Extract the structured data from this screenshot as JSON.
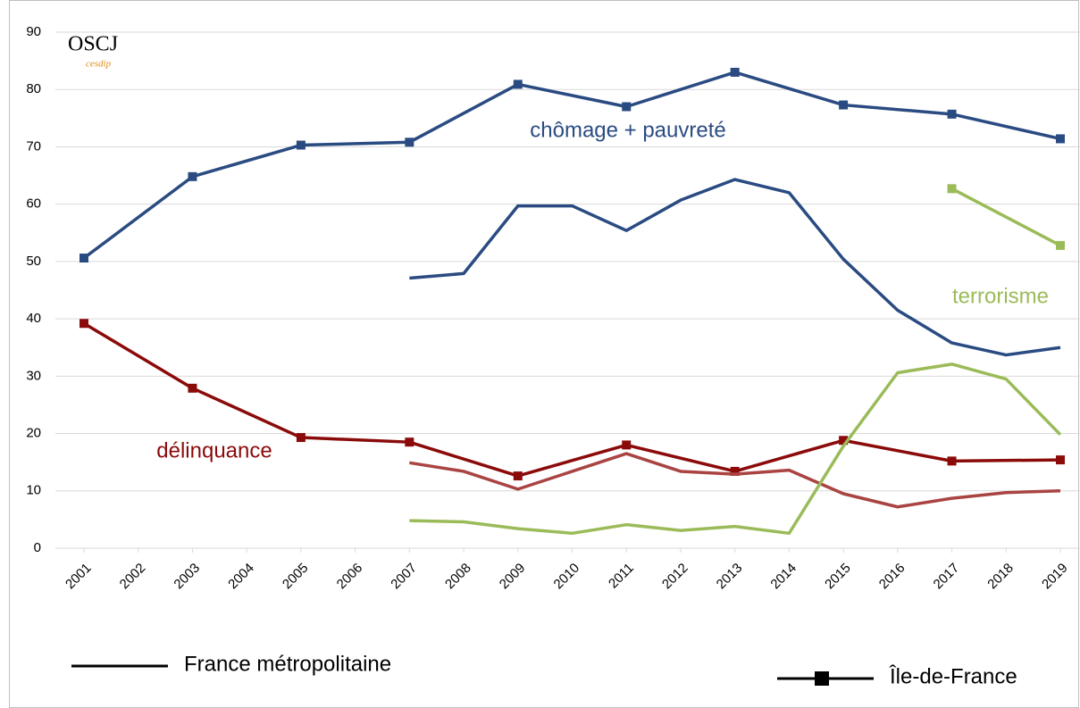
{
  "chart_data": {
    "type": "line",
    "xlim": [
      2001,
      2019
    ],
    "xticks": [
      2001,
      2002,
      2003,
      2004,
      2005,
      2006,
      2007,
      2008,
      2009,
      2010,
      2011,
      2012,
      2013,
      2014,
      2015,
      2016,
      2017,
      2018,
      2019
    ],
    "ylim": [
      0,
      90
    ],
    "yticks": [
      0,
      10,
      20,
      30,
      40,
      50,
      60,
      70,
      80,
      90
    ],
    "grid": true,
    "logo": {
      "title": "OSCJ",
      "subtitle": "cesdip"
    },
    "annotations": [
      {
        "text": "chômage + pauvreté",
        "color": "#2a4b82"
      },
      {
        "text": "terrorisme",
        "color": "#9bbb59"
      },
      {
        "text": "délinquance",
        "color": "#8b0a0a"
      }
    ],
    "legend": [
      {
        "label": "France métropolitaine",
        "marker": false
      },
      {
        "label": "Île-de-France",
        "marker": true
      }
    ],
    "series": [
      {
        "color": "#2a4b82",
        "marker": true,
        "x": [
          2001,
          2003,
          2005,
          2007,
          2009,
          2011,
          2013,
          2015,
          2017,
          2019
        ],
        "values": [
          50.6,
          64.8,
          70.3,
          70.8,
          80.9,
          77.0,
          83.0,
          77.3,
          75.7,
          71.4
        ]
      },
      {
        "color": "#2a4b82",
        "marker": false,
        "x": [
          2007,
          2008,
          2009,
          2010,
          2011,
          2012,
          2013,
          2014,
          2015,
          2016,
          2017,
          2018,
          2019
        ],
        "values": [
          47.1,
          47.9,
          59.7,
          59.7,
          55.4,
          60.7,
          64.3,
          62.0,
          50.4,
          41.5,
          35.8,
          33.7,
          35.0
        ]
      },
      {
        "color": "#8b0a0a",
        "marker": true,
        "x": [
          2001,
          2003,
          2005,
          2007,
          2009,
          2011,
          2013,
          2015,
          2017,
          2019
        ],
        "values": [
          39.2,
          27.9,
          19.3,
          18.5,
          12.6,
          18.0,
          13.4,
          18.8,
          15.2,
          15.4
        ]
      },
      {
        "color": "#a94442",
        "marker": false,
        "x": [
          2007,
          2008,
          2009,
          2010,
          2011,
          2012,
          2013,
          2014,
          2015,
          2016,
          2017,
          2018,
          2019
        ],
        "values": [
          14.9,
          13.4,
          10.3,
          13.4,
          16.5,
          13.4,
          12.9,
          13.6,
          9.5,
          7.2,
          8.7,
          9.7,
          10.0
        ]
      },
      {
        "color": "#9bbb59",
        "marker": false,
        "x": [
          2007,
          2008,
          2009,
          2010,
          2011,
          2012,
          2013,
          2014,
          2015,
          2016,
          2017,
          2018,
          2019
        ],
        "values": [
          4.8,
          4.6,
          3.4,
          2.6,
          4.1,
          3.1,
          3.8,
          2.6,
          17.8,
          30.6,
          32.1,
          29.5,
          19.8
        ]
      },
      {
        "color": "#9bbb59",
        "marker": true,
        "x": [
          2017,
          2019
        ],
        "values": [
          62.7,
          52.8
        ]
      }
    ]
  }
}
